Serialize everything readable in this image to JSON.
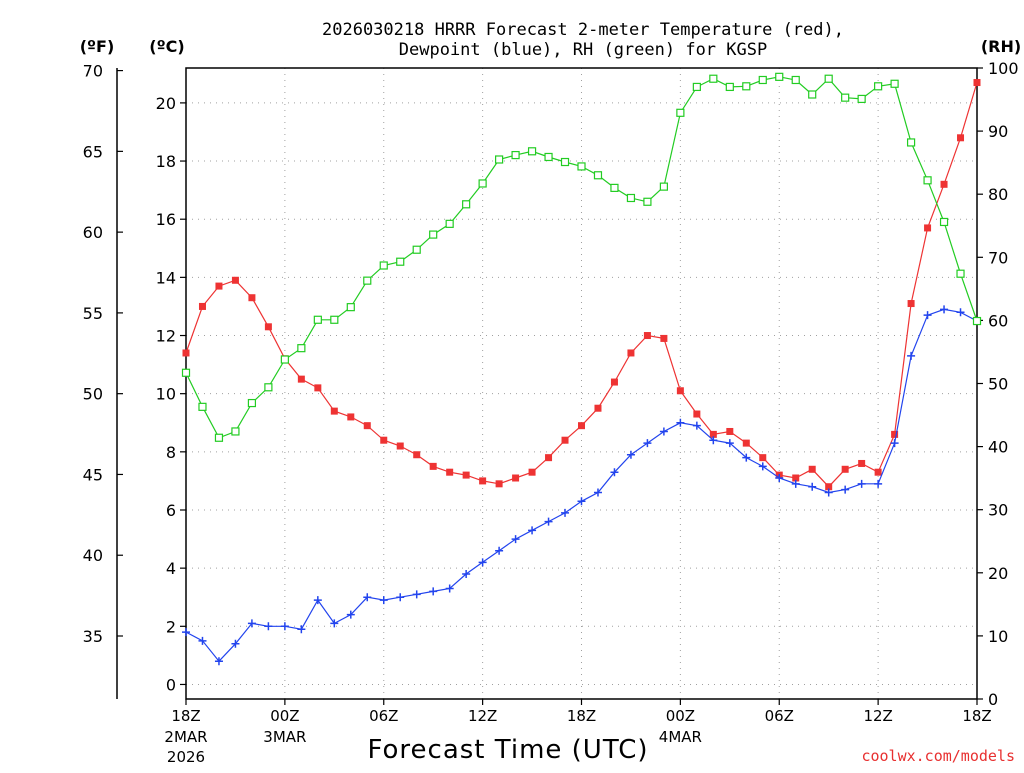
{
  "chart_data": {
    "type": "line",
    "title": "2026030218 HRRR Forecast 2-meter Temperature (red),",
    "subtitle": "Dewpoint (blue), RH (green) for KGSP",
    "xlabel": "Forecast Time (UTC)",
    "unit_f": "(ºF)",
    "unit_c": "(ºC)",
    "unit_rh": "(RH)",
    "credit": "coolwx.com/models",
    "ylim_c": [
      -0.5,
      21.2
    ],
    "ylim_rh": [
      0,
      100
    ],
    "xlim": [
      0,
      48
    ],
    "x_ticks": [
      {
        "x": 0,
        "label": "18Z",
        "sub1": "2MAR",
        "sub2": "2026"
      },
      {
        "x": 6,
        "label": "00Z",
        "sub1": "3MAR",
        "sub2": ""
      },
      {
        "x": 12,
        "label": "06Z",
        "sub1": "",
        "sub2": ""
      },
      {
        "x": 18,
        "label": "12Z",
        "sub1": "",
        "sub2": ""
      },
      {
        "x": 24,
        "label": "18Z",
        "sub1": "",
        "sub2": ""
      },
      {
        "x": 30,
        "label": "00Z",
        "sub1": "4MAR",
        "sub2": ""
      },
      {
        "x": 36,
        "label": "06Z",
        "sub1": "",
        "sub2": ""
      },
      {
        "x": 42,
        "label": "12Z",
        "sub1": "",
        "sub2": ""
      },
      {
        "x": 48,
        "label": "18Z",
        "sub1": "",
        "sub2": ""
      }
    ],
    "c_ticks": [
      0,
      2,
      4,
      6,
      8,
      10,
      12,
      14,
      16,
      18,
      20
    ],
    "f_ticks": [
      35,
      40,
      45,
      50,
      55,
      60,
      65,
      70
    ],
    "rh_ticks": [
      0,
      10,
      20,
      30,
      40,
      50,
      60,
      70,
      80,
      90,
      100
    ],
    "series": [
      {
        "name": "Temperature (red)",
        "units": "C",
        "color": "#ee3333",
        "marker": "filled-square",
        "values": [
          11.4,
          13.0,
          13.7,
          13.9,
          13.3,
          12.3,
          11.2,
          10.5,
          10.2,
          9.4,
          9.2,
          8.9,
          8.4,
          8.2,
          7.9,
          7.5,
          7.3,
          7.2,
          7.0,
          6.9,
          7.1,
          7.3,
          7.8,
          8.4,
          8.9,
          9.5,
          10.4,
          11.4,
          12.0,
          11.9,
          10.1,
          9.3,
          8.6,
          8.7,
          8.3,
          7.8,
          7.2,
          7.1,
          7.4,
          6.8,
          7.4,
          7.6,
          7.3,
          8.6,
          13.1,
          15.7,
          17.2,
          18.8,
          20.7
        ]
      },
      {
        "name": "Dewpoint (blue)",
        "units": "C",
        "color": "#2244ee",
        "marker": "plus",
        "values": [
          1.8,
          1.5,
          0.8,
          1.4,
          2.1,
          2.0,
          2.0,
          1.9,
          2.9,
          2.1,
          2.4,
          3.0,
          2.9,
          3.0,
          3.1,
          3.2,
          3.3,
          3.8,
          4.2,
          4.6,
          5.0,
          5.3,
          5.6,
          5.9,
          6.3,
          6.6,
          7.3,
          7.9,
          8.3,
          8.7,
          9.0,
          8.9,
          8.4,
          8.3,
          7.8,
          7.5,
          7.1,
          6.9,
          6.8,
          6.6,
          6.7,
          6.9,
          6.9,
          8.3,
          11.3,
          12.7,
          12.9,
          12.8,
          12.5
        ]
      },
      {
        "name": "RH (green)",
        "units": "%",
        "color": "#22cc22",
        "marker": "open-square",
        "values": [
          51.7,
          46.3,
          41.4,
          42.4,
          46.9,
          49.4,
          53.8,
          55.6,
          60.1,
          60.1,
          62.1,
          66.3,
          68.7,
          69.3,
          71.2,
          73.6,
          75.3,
          78.4,
          81.7,
          85.5,
          86.2,
          86.8,
          85.9,
          85.1,
          84.4,
          83.0,
          81.0,
          79.4,
          78.8,
          81.2,
          92.9,
          97.0,
          98.3,
          97.0,
          97.1,
          98.1,
          98.6,
          98.1,
          95.8,
          98.3,
          95.3,
          95.1,
          97.1,
          97.5,
          88.2,
          82.2,
          75.6,
          67.4,
          59.9
        ]
      }
    ]
  }
}
